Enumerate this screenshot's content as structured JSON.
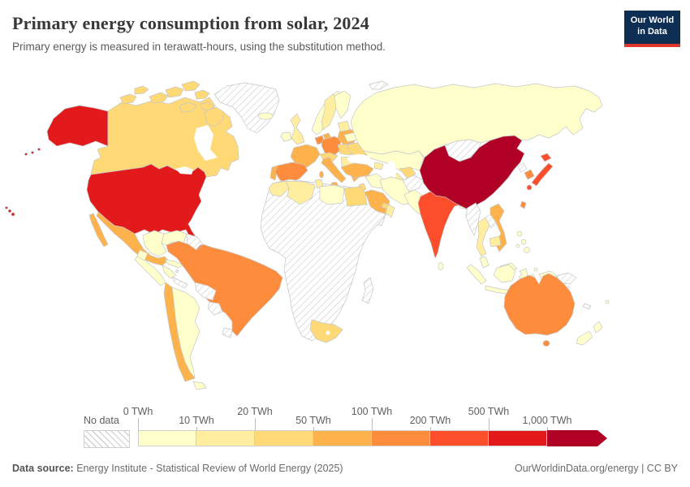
{
  "header": {
    "title": "Primary energy consumption from solar, 2024",
    "subtitle": "Primary energy is measured in terawatt-hours, using the substitution method.",
    "logo": {
      "line1": "Our World",
      "line2": "in Data",
      "bg_color": "#0f2e53",
      "accent_color": "#e0372c"
    }
  },
  "legend": {
    "no_data_label": "No data",
    "ticks": [
      {
        "label": "0 TWh",
        "row": "top"
      },
      {
        "label": "10 TWh",
        "row": "bottom"
      },
      {
        "label": "20 TWh",
        "row": "top"
      },
      {
        "label": "50 TWh",
        "row": "bottom"
      },
      {
        "label": "100 TWh",
        "row": "top"
      },
      {
        "label": "200 TWh",
        "row": "bottom"
      },
      {
        "label": "500 TWh",
        "row": "top"
      },
      {
        "label": "1,000 TWh",
        "row": "bottom"
      }
    ],
    "bins": [
      {
        "range": "0-10 TWh",
        "color": "#ffffcc"
      },
      {
        "range": "10-20 TWh",
        "color": "#ffeda0"
      },
      {
        "range": "20-50 TWh",
        "color": "#fed976"
      },
      {
        "range": "50-100 TWh",
        "color": "#feb24c"
      },
      {
        "range": "100-200 TWh",
        "color": "#fd8d3c"
      },
      {
        "range": "200-500 TWh",
        "color": "#fc4e2a"
      },
      {
        "range": "500-1,000 TWh",
        "color": "#e31a1c"
      },
      {
        "range": "1,000+ TWh",
        "color": "#b10026"
      }
    ],
    "no_data_hatch_color": "#d8d8d8"
  },
  "chart_data": {
    "type": "choropleth",
    "title": "Primary energy consumption from solar, 2024",
    "unit": "TWh",
    "legend_bin_ranges": [
      "0-10",
      "10-20",
      "20-50",
      "50-100",
      "100-200",
      "200-500",
      "500-1,000",
      "1,000+"
    ],
    "regions": [
      {
        "id": "united-states",
        "name": "United States",
        "bin": 6
      },
      {
        "id": "canada",
        "name": "Canada",
        "bin": 2
      },
      {
        "id": "greenland",
        "name": "Greenland",
        "bin": "no-data"
      },
      {
        "id": "mexico",
        "name": "Mexico",
        "bin": 3
      },
      {
        "id": "guatemala",
        "name": "Guatemala / Central America",
        "bin": 0
      },
      {
        "id": "nicaragua-panama",
        "name": "Nicaragua / Panama",
        "bin": "no-data"
      },
      {
        "id": "cuba",
        "name": "Cuba",
        "bin": 0
      },
      {
        "id": "hispaniola",
        "name": "Hispaniola",
        "bin": "no-data"
      },
      {
        "id": "colombia",
        "name": "Colombia",
        "bin": 0
      },
      {
        "id": "venezuela",
        "name": "Venezuela",
        "bin": 0
      },
      {
        "id": "guyanas",
        "name": "Guyanas",
        "bin": "no-data"
      },
      {
        "id": "ecuador",
        "name": "Ecuador",
        "bin": 0
      },
      {
        "id": "peru",
        "name": "Peru",
        "bin": 0
      },
      {
        "id": "brazil",
        "name": "Brazil",
        "bin": 4
      },
      {
        "id": "bolivia",
        "name": "Bolivia",
        "bin": "no-data"
      },
      {
        "id": "paraguay",
        "name": "Paraguay",
        "bin": "no-data"
      },
      {
        "id": "uruguay",
        "name": "Uruguay",
        "bin": "no-data"
      },
      {
        "id": "chile",
        "name": "Chile",
        "bin": 3
      },
      {
        "id": "argentina",
        "name": "Argentina",
        "bin": 0
      },
      {
        "id": "iceland",
        "name": "Iceland",
        "bin": 0
      },
      {
        "id": "ireland",
        "name": "Ireland",
        "bin": 0
      },
      {
        "id": "united-kingdom",
        "name": "United Kingdom",
        "bin": 1
      },
      {
        "id": "norway",
        "name": "Norway",
        "bin": 0
      },
      {
        "id": "sweden",
        "name": "Sweden",
        "bin": 1
      },
      {
        "id": "finland",
        "name": "Finland",
        "bin": 0
      },
      {
        "id": "denmark",
        "name": "Denmark",
        "bin": 3
      },
      {
        "id": "germany",
        "name": "Germany",
        "bin": 4
      },
      {
        "id": "benelux",
        "name": "Netherlands / Belgium",
        "bin": 4
      },
      {
        "id": "france",
        "name": "France",
        "bin": 3
      },
      {
        "id": "spain",
        "name": "Spain",
        "bin": 4
      },
      {
        "id": "portugal",
        "name": "Portugal",
        "bin": 3
      },
      {
        "id": "italy",
        "name": "Italy",
        "bin": 3
      },
      {
        "id": "alpine",
        "name": "Switzerland / Austria",
        "bin": 2
      },
      {
        "id": "poland",
        "name": "Poland",
        "bin": 3
      },
      {
        "id": "czech-hungary",
        "name": "Czechia / Hungary",
        "bin": 2
      },
      {
        "id": "balkans",
        "name": "Balkans",
        "bin": 1
      },
      {
        "id": "greece",
        "name": "Greece",
        "bin": 3
      },
      {
        "id": "romania-bulgaria",
        "name": "Romania / Bulgaria",
        "bin": 2
      },
      {
        "id": "baltics",
        "name": "Baltic states",
        "bin": 1
      },
      {
        "id": "belarus",
        "name": "Belarus",
        "bin": 0
      },
      {
        "id": "ukraine",
        "name": "Ukraine",
        "bin": 2
      },
      {
        "id": "russia",
        "name": "Russia",
        "bin": 0
      },
      {
        "id": "svalbard",
        "name": "Svalbard",
        "bin": "no-data"
      },
      {
        "id": "kazakhstan",
        "name": "Kazakhstan",
        "bin": 0
      },
      {
        "id": "caucasus",
        "name": "Caucasus",
        "bin": 1
      },
      {
        "id": "uzbekistan",
        "name": "Uzbekistan",
        "bin": 2
      },
      {
        "id": "turkmenistan",
        "name": "Turkmenistan",
        "bin": 1
      },
      {
        "id": "turkey",
        "name": "Turkey",
        "bin": 3
      },
      {
        "id": "syria-iraq",
        "name": "Syria / Iraq",
        "bin": 0
      },
      {
        "id": "israel-jordan",
        "name": "Israel / Jordan",
        "bin": 2
      },
      {
        "id": "saudi-arabia",
        "name": "Saudi Arabia",
        "bin": 3
      },
      {
        "id": "uae-qatar",
        "name": "United Arab Emirates / Qatar",
        "bin": 2
      },
      {
        "id": "oman",
        "name": "Oman",
        "bin": 1
      },
      {
        "id": "yemen",
        "name": "Yemen",
        "bin": "no-data"
      },
      {
        "id": "iran",
        "name": "Iran",
        "bin": 0
      },
      {
        "id": "afghanistan",
        "name": "Afghanistan",
        "bin": "no-data"
      },
      {
        "id": "pakistan",
        "name": "Pakistan",
        "bin": 0
      },
      {
        "id": "morocco",
        "name": "Morocco",
        "bin": 1
      },
      {
        "id": "algeria",
        "name": "Algeria",
        "bin": 1
      },
      {
        "id": "tunisia",
        "name": "Tunisia",
        "bin": 1
      },
      {
        "id": "libya",
        "name": "Libya",
        "bin": 0
      },
      {
        "id": "egypt",
        "name": "Egypt",
        "bin": 2
      },
      {
        "id": "sub-saharan-africa",
        "name": "Sub-Saharan Africa (most countries)",
        "bin": "no-data"
      },
      {
        "id": "south-africa",
        "name": "South Africa",
        "bin": 2
      },
      {
        "id": "madagascar",
        "name": "Madagascar",
        "bin": "no-data"
      },
      {
        "id": "india",
        "name": "India",
        "bin": 5
      },
      {
        "id": "sri-lanka",
        "name": "Sri Lanka",
        "bin": 0
      },
      {
        "id": "bangladesh",
        "name": "Bangladesh",
        "bin": 0
      },
      {
        "id": "china",
        "name": "China",
        "bin": 7
      },
      {
        "id": "mongolia",
        "name": "Mongolia",
        "bin": "no-data"
      },
      {
        "id": "north-korea",
        "name": "North Korea",
        "bin": "no-data"
      },
      {
        "id": "south-korea",
        "name": "South Korea",
        "bin": 4
      },
      {
        "id": "japan",
        "name": "Japan",
        "bin": 5
      },
      {
        "id": "taiwan",
        "name": "Taiwan",
        "bin": 4
      },
      {
        "id": "myanmar",
        "name": "Myanmar",
        "bin": "no-data"
      },
      {
        "id": "thailand",
        "name": "Thailand",
        "bin": 1
      },
      {
        "id": "laos",
        "name": "Laos",
        "bin": "no-data"
      },
      {
        "id": "vietnam",
        "name": "Vietnam",
        "bin": 3
      },
      {
        "id": "cambodia",
        "name": "Cambodia",
        "bin": 1
      },
      {
        "id": "malaysia",
        "name": "Malaysia",
        "bin": 0
      },
      {
        "id": "indonesia",
        "name": "Indonesia",
        "bin": 0
      },
      {
        "id": "philippines",
        "name": "Philippines",
        "bin": 0
      },
      {
        "id": "papua-new-guinea",
        "name": "Papua New Guinea",
        "bin": "no-data"
      },
      {
        "id": "australia",
        "name": "Australia",
        "bin": 4
      },
      {
        "id": "new-zealand",
        "name": "New Zealand",
        "bin": 0
      },
      {
        "id": "new-caledonia",
        "name": "New Caledonia",
        "bin": "no-data"
      },
      {
        "id": "fiji",
        "name": "Fiji",
        "bin": 0
      }
    ]
  },
  "footer": {
    "source_label": "Data source:",
    "source_text": " Energy Institute - Statistical Review of World Energy (2025)",
    "link": "OurWorldinData.org/energy",
    "separator": " | ",
    "license": "CC BY"
  }
}
